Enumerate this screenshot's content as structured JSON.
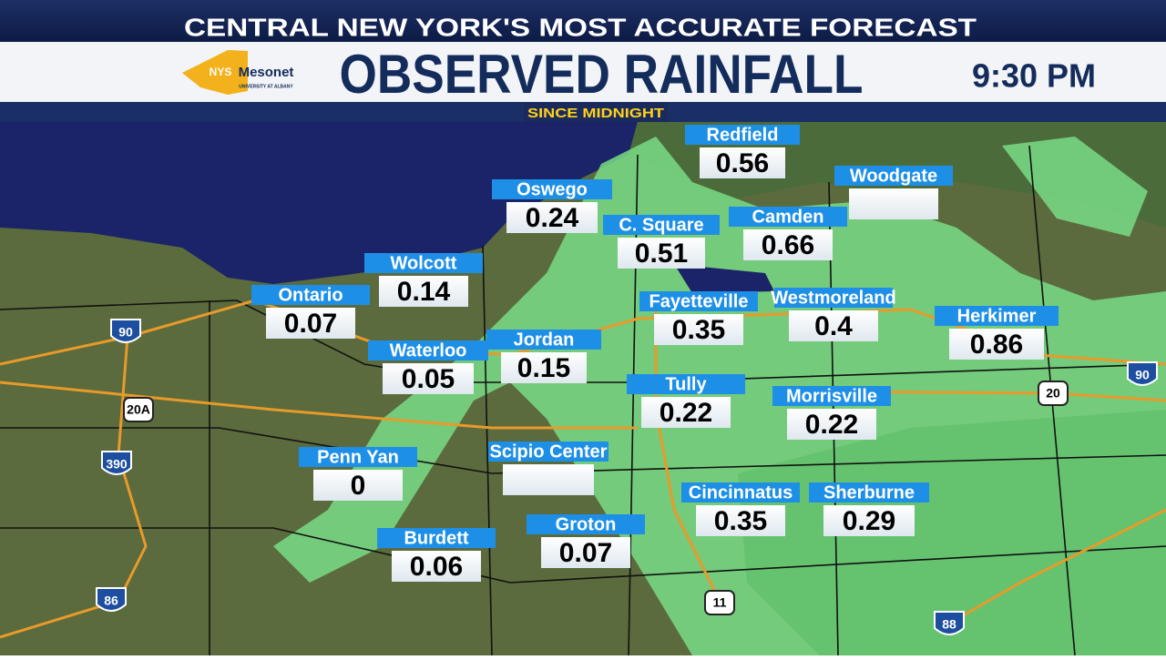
{
  "header": {
    "tagline": "CENTRAL NEW YORK'S MOST ACCURATE FORECAST",
    "title": "OBSERVED RAINFALL",
    "time": "9:30 PM",
    "subtitle": "SINCE MIDNIGHT"
  },
  "logo": {
    "line1": "NYS",
    "line2": "Mesonet",
    "line3": "UNIVERSITY AT ALBANY"
  },
  "stations": [
    {
      "name": "Redfield",
      "value": 0.56
    },
    {
      "name": "Woodgate"
    },
    {
      "name": "Oswego",
      "value": 0.24
    },
    {
      "name": "C. Square",
      "value": 0.51
    },
    {
      "name": "Camden",
      "value": 0.66
    },
    {
      "name": "Wolcott",
      "value": 0.14
    },
    {
      "name": "Ontario",
      "value": 0.07
    },
    {
      "name": "Fayetteville",
      "value": 0.35
    },
    {
      "name": "Westmoreland",
      "value": 0.4
    },
    {
      "name": "Herkimer",
      "value": 0.86
    },
    {
      "name": "Waterloo",
      "value": 0.05
    },
    {
      "name": "Jordan",
      "value": 0.15
    },
    {
      "name": "Tully",
      "value": 0.22
    },
    {
      "name": "Morrisville",
      "value": 0.22
    },
    {
      "name": "Penn Yan",
      "value": 0
    },
    {
      "name": "Scipio Center"
    },
    {
      "name": "Cincinnatus",
      "value": 0.35
    },
    {
      "name": "Sherburne",
      "value": 0.29
    },
    {
      "name": "Burdett",
      "value": 0.06
    },
    {
      "name": "Groton",
      "value": 0.07
    }
  ],
  "shields": [
    "90",
    "20A",
    "390",
    "86",
    "20",
    "90",
    "11",
    "88"
  ]
}
